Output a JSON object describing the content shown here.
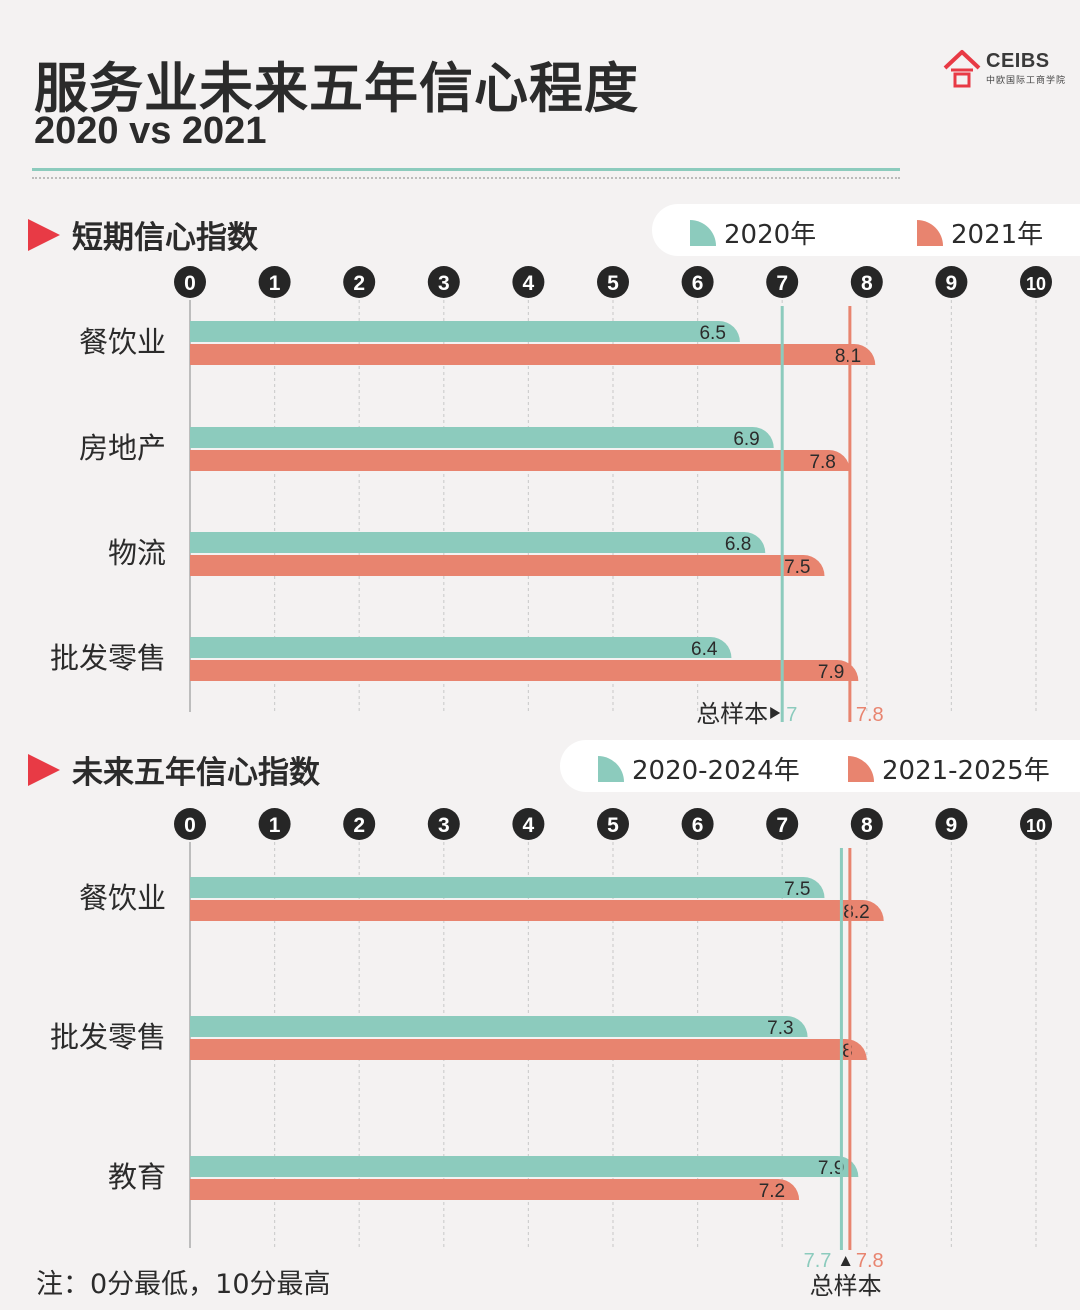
{
  "title": "服务业未来五年信心程度",
  "subtitle": "2020 vs 2021",
  "logo": {
    "text": "CEIBS",
    "cn": "中欧国际工商学院"
  },
  "colors": {
    "series_a": "#8ccbbd",
    "series_b": "#e8846f",
    "accent": "#e83a45"
  },
  "note": "注：0分最低，10分最高",
  "chart_data": [
    {
      "type": "bar",
      "title": "短期信心指数",
      "categories": [
        "餐饮业",
        "房地产",
        "物流",
        "批发零售"
      ],
      "series": [
        {
          "name": "2020年",
          "values": [
            6.5,
            6.9,
            6.8,
            6.4
          ]
        },
        {
          "name": "2021年",
          "values": [
            8.1,
            7.8,
            7.5,
            7.9
          ]
        }
      ],
      "ticks": [
        "0",
        "1",
        "2",
        "3",
        "4",
        "5",
        "6",
        "7",
        "8",
        "9",
        "10"
      ],
      "xlim": [
        0,
        10
      ],
      "reference": {
        "label": "总样本",
        "values": [
          7,
          7.8
        ]
      }
    },
    {
      "type": "bar",
      "title": "未来五年信心指数",
      "categories": [
        "餐饮业",
        "批发零售",
        "教育"
      ],
      "series": [
        {
          "name": "2020-2024年",
          "values": [
            7.5,
            7.3,
            7.9
          ]
        },
        {
          "name": "2021-2025年",
          "values": [
            8.2,
            8,
            7.2
          ]
        }
      ],
      "ticks": [
        "0",
        "1",
        "2",
        "3",
        "4",
        "5",
        "6",
        "7",
        "8",
        "9",
        "10"
      ],
      "xlim": [
        0,
        10
      ],
      "reference": {
        "label": "总样本",
        "values": [
          7.7,
          7.8
        ]
      }
    }
  ]
}
